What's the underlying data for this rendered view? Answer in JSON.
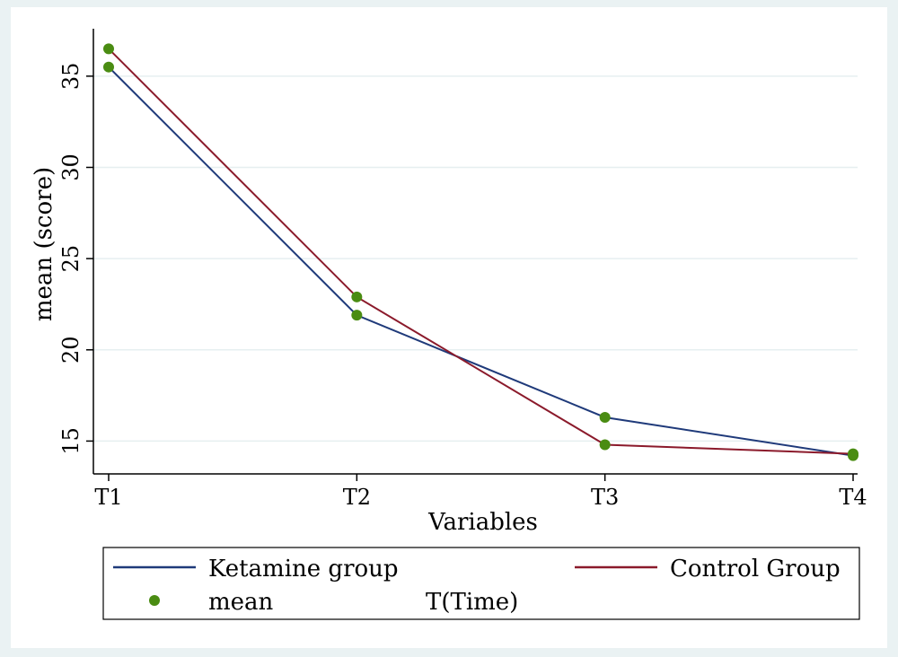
{
  "chart_data": {
    "type": "line",
    "categories": [
      "T1",
      "T2",
      "T3",
      "T4"
    ],
    "series": [
      {
        "name": "Ketamine group",
        "values": [
          35.5,
          21.9,
          16.3,
          14.2
        ]
      },
      {
        "name": "Control Group",
        "values": [
          36.5,
          22.9,
          14.8,
          14.3
        ]
      }
    ],
    "marker_label": "mean",
    "extra_legend_text": "T(Time)",
    "xlabel": "Variables",
    "ylabel": "mean (score)",
    "yticks": [
      15,
      20,
      25,
      30,
      35
    ],
    "ylim": [
      13.2,
      37.6
    ],
    "grid": true,
    "legend_position": "bottom",
    "colors": {
      "ketamine_line": "#1f3a7a",
      "control_line": "#8b1a2b",
      "marker": "#4a8c12",
      "grid": "#e6eff0",
      "frame": "#eaf2f3"
    }
  }
}
